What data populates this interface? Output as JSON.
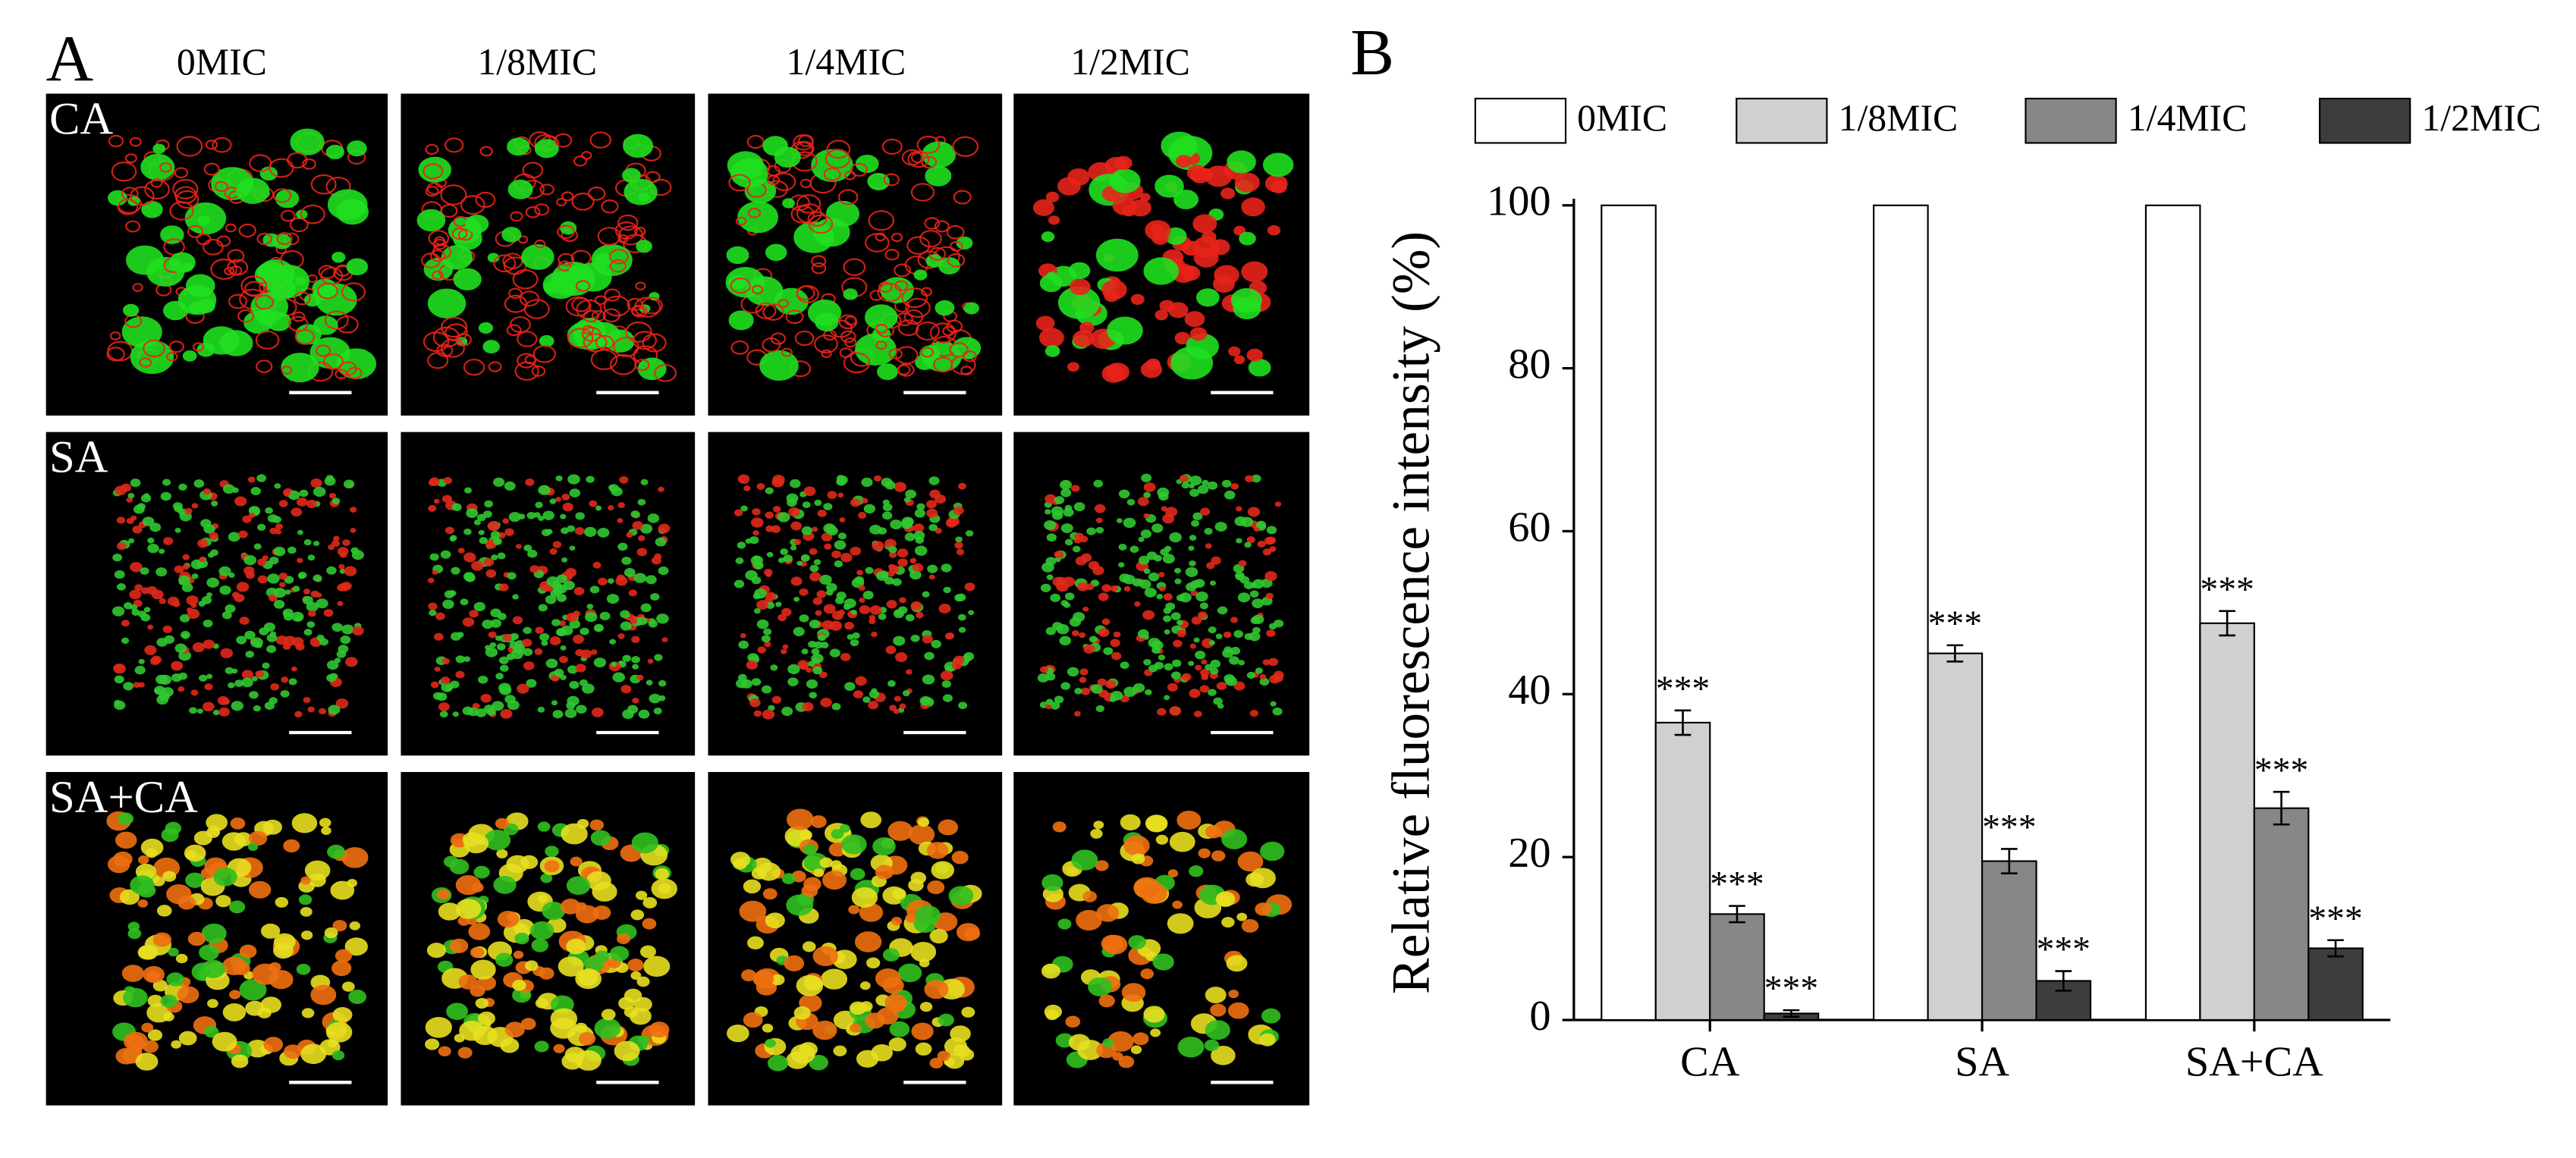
{
  "panel_a": {
    "label": "A",
    "columns": [
      "0MIC",
      "1/8MIC",
      "1/4MIC",
      "1/2MIC"
    ],
    "rows": [
      "CA",
      "SA",
      "SA+CA"
    ]
  },
  "chart_data": {
    "type": "bar",
    "panel_label": "B",
    "y_label": "Relative fluorescence intensity (%)",
    "categories": [
      "CA",
      "SA",
      "SA+CA"
    ],
    "ylim": [
      0,
      100
    ],
    "yticks": [
      0,
      20,
      40,
      60,
      80,
      100
    ],
    "legend": "top",
    "series": [
      {
        "name": "0MIC",
        "color": "#ffffff",
        "values": [
          100,
          100,
          100
        ]
      },
      {
        "name": "1/8MIC",
        "color": "#d0d0d0",
        "values": [
          36.5,
          45,
          48.7
        ],
        "errors": [
          1.5,
          1,
          1.5
        ],
        "significance": [
          "***",
          "***",
          "***"
        ]
      },
      {
        "name": "1/4MIC",
        "color": "#878787",
        "values": [
          13,
          19.5,
          26
        ],
        "errors": [
          1,
          1.5,
          2
        ],
        "significance": [
          "***",
          "***",
          "***"
        ]
      },
      {
        "name": "1/2MIC",
        "color": "#3d3d3d",
        "values": [
          0.8,
          4.8,
          8.8
        ],
        "errors": [
          0.4,
          1.2,
          1
        ],
        "significance": [
          "***",
          "***",
          "***"
        ]
      }
    ]
  }
}
